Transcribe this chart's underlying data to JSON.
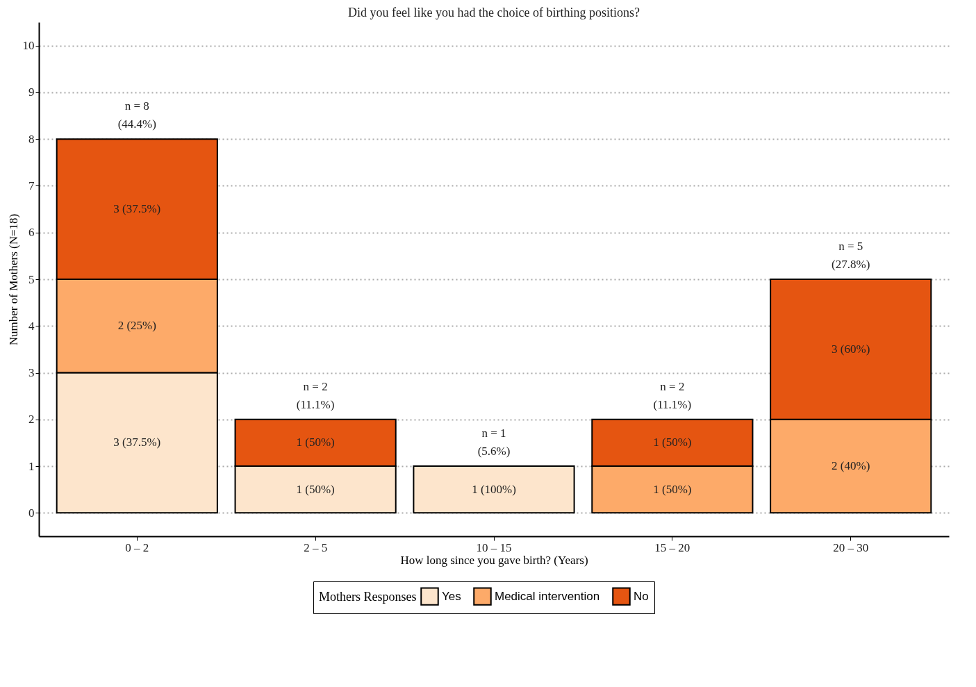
{
  "chart_data": {
    "type": "bar",
    "stacked": true,
    "title": "Did you feel like you had the choice of birthing positions?",
    "xlabel": "How long since you gave birth? (Years)",
    "ylabel": "Number of Mothers (N=18)",
    "legend_title": "Mothers Responses",
    "legend": "bottom",
    "grid": "y",
    "categories": [
      "0 – 2",
      "2 – 5",
      "10 – 15",
      "15 – 20",
      "20 – 30"
    ],
    "ylim": [
      -0.5,
      10.5
    ],
    "yticks": [
      0,
      1,
      2,
      3,
      4,
      5,
      6,
      7,
      8,
      9,
      10
    ],
    "series": [
      {
        "name": "Yes",
        "color": "#fde5cc",
        "values": [
          3,
          1,
          1,
          null,
          null
        ],
        "value_labels": [
          "3 (37.5%)",
          "1 (50%)",
          "1 (100%)",
          null,
          null
        ]
      },
      {
        "name": "Medical intervention",
        "color": "#fdaa69",
        "values": [
          2,
          null,
          null,
          1,
          2
        ],
        "value_labels": [
          "2 (25%)",
          null,
          null,
          "1 (50%)",
          "2 (40%)"
        ]
      },
      {
        "name": "No",
        "color": "#e55511",
        "values": [
          3,
          1,
          null,
          1,
          3
        ],
        "value_labels": [
          "3 (37.5%)",
          "1 (50%)",
          null,
          "1 (50%)",
          "3 (60%)"
        ]
      }
    ],
    "totals": [
      "n = 8 (44.4%)",
      "n = 2 (11.1%)",
      "n = 1 (5.6%)",
      "n = 2 (11.1%)",
      "n = 5 (27.8%)"
    ]
  }
}
